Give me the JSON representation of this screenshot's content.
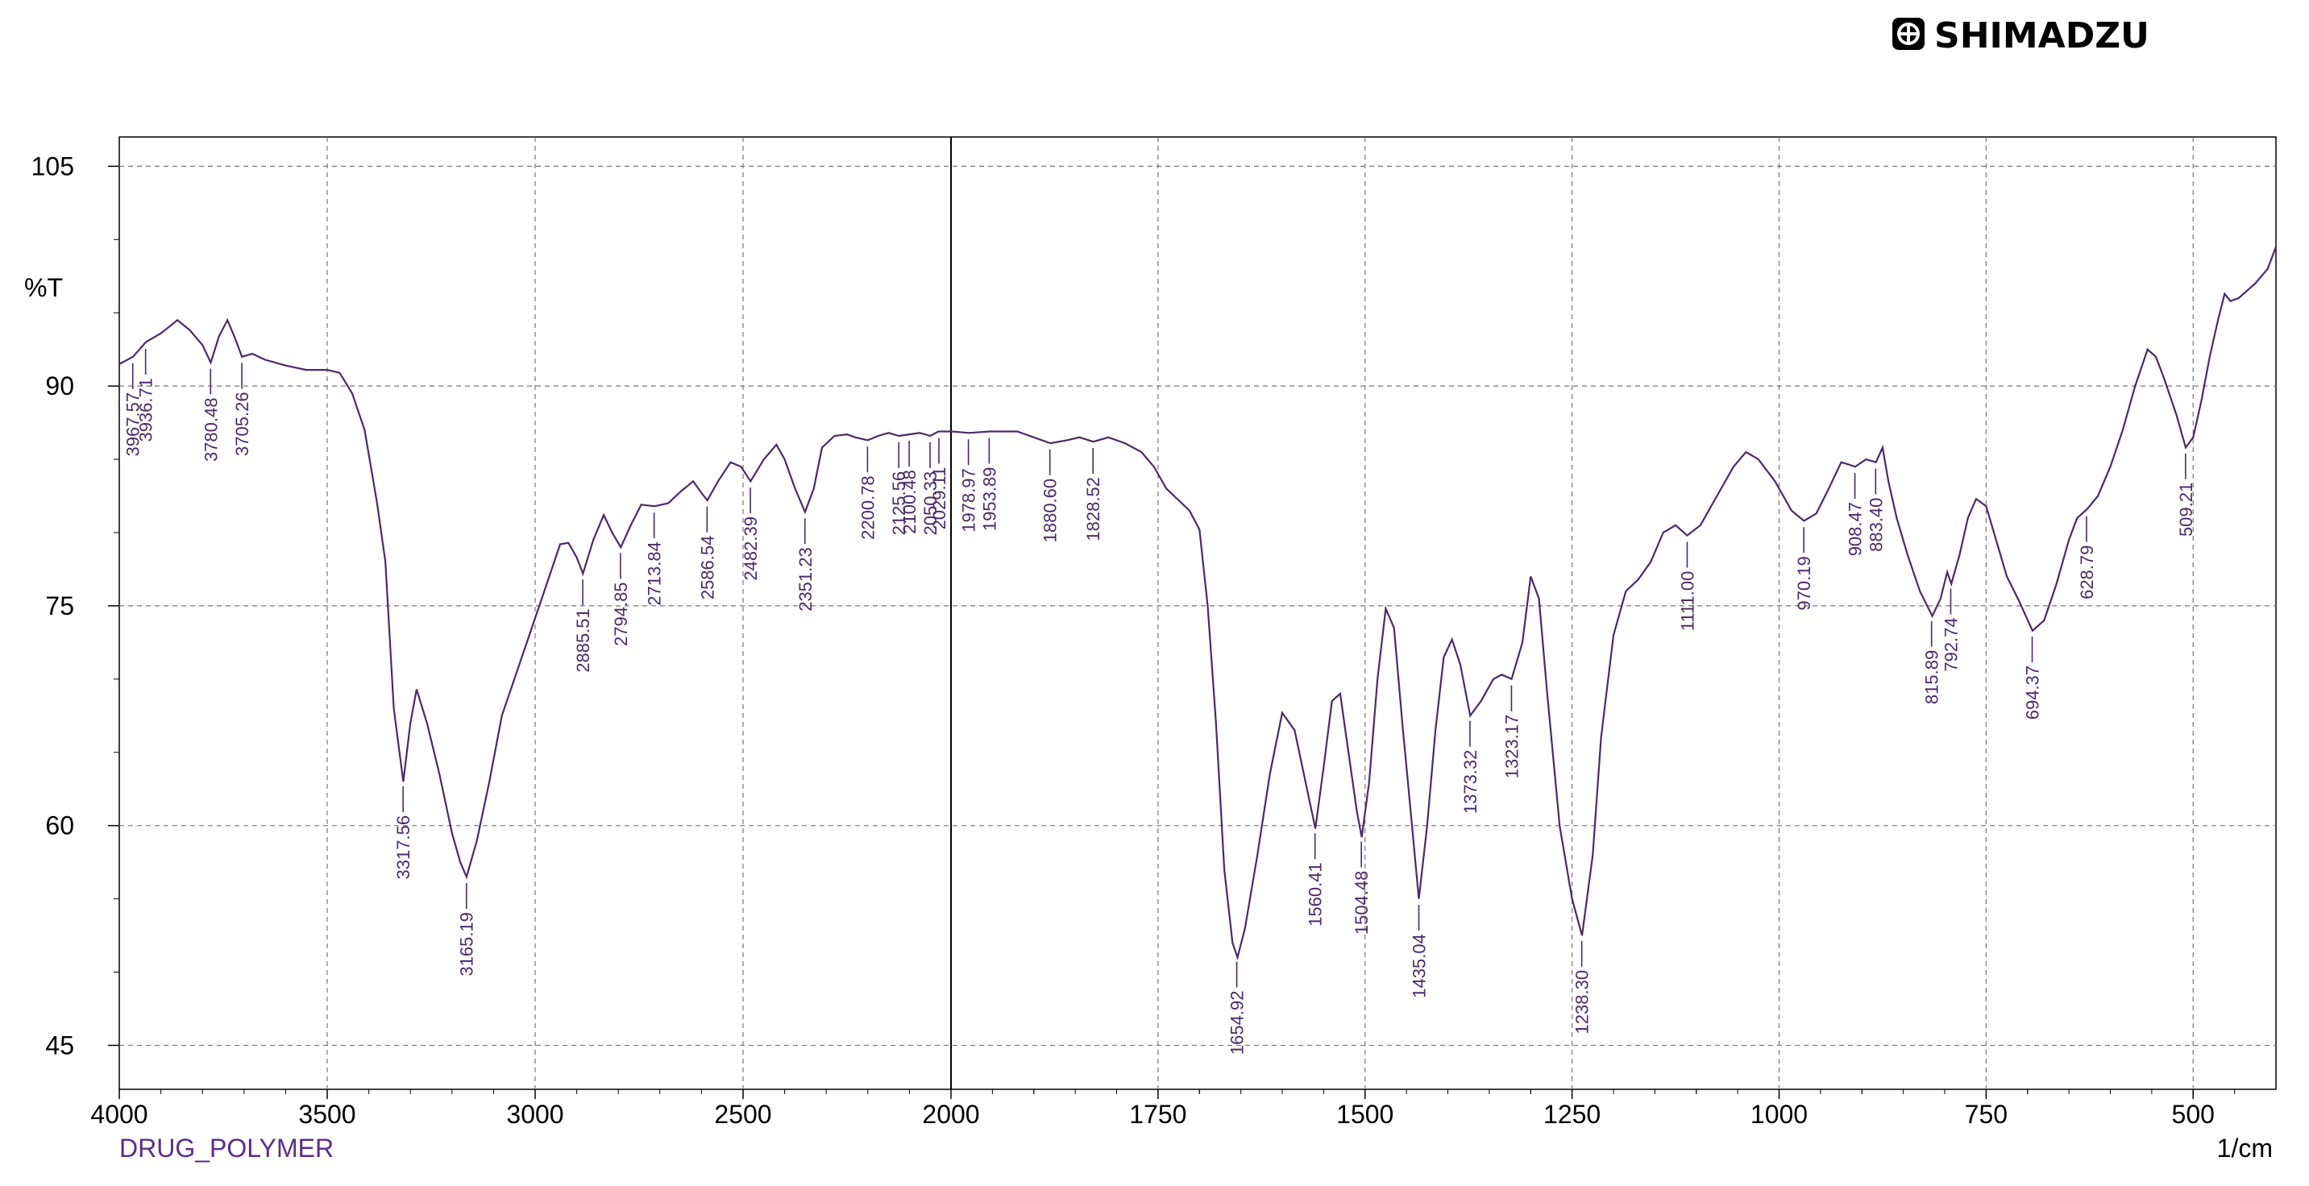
{
  "brand": {
    "name": "SHIMADZU",
    "icon": "shimadzu-logo-icon"
  },
  "chart_data": {
    "type": "line",
    "title": "",
    "sample_name": "DRUG_POLYMER",
    "xlabel": "1/cm",
    "ylabel": "%T",
    "xlim": [
      4000,
      400
    ],
    "ylim": [
      42,
      107
    ],
    "x_ticks": [
      4000,
      3500,
      3000,
      2500,
      2000,
      1750,
      1500,
      1250,
      1000,
      750,
      500
    ],
    "x_tick_labels": [
      "4000",
      "3500",
      "3000",
      "2500",
      "2000",
      "1750",
      "1500",
      "1250",
      "1000",
      "750",
      "500"
    ],
    "y_ticks": [
      45,
      60,
      75,
      90,
      105
    ],
    "y_tick_labels": [
      "45",
      "60",
      "75",
      "90",
      "105"
    ],
    "grid": true,
    "cursor_x": 2000,
    "series": [
      {
        "color": "#4b2a68",
        "points": [
          [
            4000,
            91.5
          ],
          [
            3967,
            92.0
          ],
          [
            3936,
            93.0
          ],
          [
            3900,
            93.6
          ],
          [
            3860,
            94.5
          ],
          [
            3830,
            93.8
          ],
          [
            3800,
            92.8
          ],
          [
            3780,
            91.6
          ],
          [
            3760,
            93.4
          ],
          [
            3740,
            94.5
          ],
          [
            3722,
            93.3
          ],
          [
            3705,
            92.0
          ],
          [
            3680,
            92.2
          ],
          [
            3650,
            91.8
          ],
          [
            3600,
            91.4
          ],
          [
            3550,
            91.1
          ],
          [
            3500,
            91.1
          ],
          [
            3470,
            90.9
          ],
          [
            3440,
            89.5
          ],
          [
            3410,
            87.0
          ],
          [
            3380,
            82.0
          ],
          [
            3360,
            78.0
          ],
          [
            3340,
            68.0
          ],
          [
            3317,
            63.0
          ],
          [
            3300,
            67.0
          ],
          [
            3285,
            69.3
          ],
          [
            3260,
            67.0
          ],
          [
            3230,
            63.5
          ],
          [
            3200,
            59.5
          ],
          [
            3180,
            57.5
          ],
          [
            3165,
            56.5
          ],
          [
            3140,
            59.0
          ],
          [
            3110,
            63.0
          ],
          [
            3080,
            67.5
          ],
          [
            3050,
            70.0
          ],
          [
            3020,
            72.5
          ],
          [
            2990,
            75.0
          ],
          [
            2960,
            77.5
          ],
          [
            2940,
            79.2
          ],
          [
            2920,
            79.3
          ],
          [
            2900,
            78.3
          ],
          [
            2885,
            77.2
          ],
          [
            2860,
            79.5
          ],
          [
            2835,
            81.2
          ],
          [
            2815,
            80.0
          ],
          [
            2794,
            79.0
          ],
          [
            2770,
            80.5
          ],
          [
            2745,
            81.9
          ],
          [
            2713,
            81.8
          ],
          [
            2680,
            82.0
          ],
          [
            2650,
            82.8
          ],
          [
            2620,
            83.5
          ],
          [
            2600,
            82.7
          ],
          [
            2586,
            82.2
          ],
          [
            2560,
            83.5
          ],
          [
            2530,
            84.8
          ],
          [
            2505,
            84.5
          ],
          [
            2482,
            83.5
          ],
          [
            2450,
            85.0
          ],
          [
            2420,
            86.0
          ],
          [
            2400,
            85.0
          ],
          [
            2375,
            83.0
          ],
          [
            2351,
            81.4
          ],
          [
            2330,
            83.0
          ],
          [
            2310,
            85.8
          ],
          [
            2280,
            86.6
          ],
          [
            2250,
            86.7
          ],
          [
            2230,
            86.5
          ],
          [
            2200,
            86.3
          ],
          [
            2175,
            86.6
          ],
          [
            2150,
            86.8
          ],
          [
            2125,
            86.6
          ],
          [
            2100,
            86.7
          ],
          [
            2075,
            86.8
          ],
          [
            2050,
            86.6
          ],
          [
            2030,
            86.9
          ],
          [
            2000,
            86.9
          ],
          [
            1978,
            86.8
          ],
          [
            1953,
            86.9
          ],
          [
            1920,
            86.9
          ],
          [
            1900,
            86.5
          ],
          [
            1880,
            86.1
          ],
          [
            1860,
            86.3
          ],
          [
            1845,
            86.5
          ],
          [
            1828,
            86.2
          ],
          [
            1810,
            86.5
          ],
          [
            1790,
            86.1
          ],
          [
            1770,
            85.5
          ],
          [
            1755,
            84.5
          ],
          [
            1740,
            83.0
          ],
          [
            1725,
            82.2
          ],
          [
            1712,
            81.5
          ],
          [
            1700,
            80.2
          ],
          [
            1690,
            75.0
          ],
          [
            1680,
            67.0
          ],
          [
            1670,
            57.0
          ],
          [
            1660,
            52.0
          ],
          [
            1654,
            51.0
          ],
          [
            1645,
            53.0
          ],
          [
            1630,
            58.0
          ],
          [
            1615,
            63.5
          ],
          [
            1600,
            67.7
          ],
          [
            1585,
            66.5
          ],
          [
            1572,
            63.0
          ],
          [
            1560,
            59.8
          ],
          [
            1550,
            64.0
          ],
          [
            1540,
            68.5
          ],
          [
            1530,
            69.0
          ],
          [
            1520,
            65.0
          ],
          [
            1510,
            61.0
          ],
          [
            1504,
            59.2
          ],
          [
            1495,
            63.0
          ],
          [
            1485,
            70.0
          ],
          [
            1475,
            74.8
          ],
          [
            1465,
            73.5
          ],
          [
            1455,
            67.0
          ],
          [
            1445,
            61.0
          ],
          [
            1435,
            55.0
          ],
          [
            1425,
            60.0
          ],
          [
            1415,
            66.5
          ],
          [
            1405,
            71.5
          ],
          [
            1395,
            72.7
          ],
          [
            1385,
            71.0
          ],
          [
            1373,
            67.5
          ],
          [
            1360,
            68.5
          ],
          [
            1345,
            70.0
          ],
          [
            1335,
            70.3
          ],
          [
            1323,
            70.0
          ],
          [
            1310,
            72.5
          ],
          [
            1300,
            77.0
          ],
          [
            1290,
            75.5
          ],
          [
            1280,
            69.0
          ],
          [
            1265,
            60.0
          ],
          [
            1250,
            55.0
          ],
          [
            1238,
            52.5
          ],
          [
            1225,
            58.0
          ],
          [
            1215,
            66.0
          ],
          [
            1200,
            73.0
          ],
          [
            1185,
            76.0
          ],
          [
            1170,
            76.8
          ],
          [
            1155,
            78.0
          ],
          [
            1140,
            80.0
          ],
          [
            1125,
            80.5
          ],
          [
            1111,
            79.8
          ],
          [
            1095,
            80.5
          ],
          [
            1075,
            82.5
          ],
          [
            1055,
            84.5
          ],
          [
            1040,
            85.5
          ],
          [
            1025,
            85.0
          ],
          [
            1005,
            83.5
          ],
          [
            985,
            81.5
          ],
          [
            970,
            80.8
          ],
          [
            955,
            81.3
          ],
          [
            940,
            83.0
          ],
          [
            925,
            84.8
          ],
          [
            908,
            84.5
          ],
          [
            895,
            85.0
          ],
          [
            883,
            84.8
          ],
          [
            875,
            85.8
          ],
          [
            868,
            83.5
          ],
          [
            858,
            81.0
          ],
          [
            845,
            78.5
          ],
          [
            830,
            76.0
          ],
          [
            815,
            74.3
          ],
          [
            805,
            75.5
          ],
          [
            797,
            77.3
          ],
          [
            792,
            76.5
          ],
          [
            782,
            78.5
          ],
          [
            772,
            81.0
          ],
          [
            762,
            82.3
          ],
          [
            750,
            81.8
          ],
          [
            738,
            79.5
          ],
          [
            725,
            77.0
          ],
          [
            710,
            75.3
          ],
          [
            694,
            73.3
          ],
          [
            680,
            74.0
          ],
          [
            665,
            76.5
          ],
          [
            650,
            79.5
          ],
          [
            640,
            81.0
          ],
          [
            628,
            81.6
          ],
          [
            615,
            82.5
          ],
          [
            600,
            84.5
          ],
          [
            585,
            87.0
          ],
          [
            570,
            90.0
          ],
          [
            555,
            92.5
          ],
          [
            545,
            92.0
          ],
          [
            535,
            90.5
          ],
          [
            520,
            88.0
          ],
          [
            509,
            85.8
          ],
          [
            500,
            86.5
          ],
          [
            490,
            89.0
          ],
          [
            480,
            92.0
          ],
          [
            470,
            94.5
          ],
          [
            462,
            96.3
          ],
          [
            455,
            95.8
          ],
          [
            445,
            96.0
          ],
          [
            435,
            96.5
          ],
          [
            425,
            97.0
          ],
          [
            410,
            98.0
          ],
          [
            400,
            99.5
          ]
        ]
      }
    ],
    "peaks": [
      {
        "x": 3967.57,
        "label": "3967.57"
      },
      {
        "x": 3936.71,
        "label": "3936.71"
      },
      {
        "x": 3780.48,
        "label": "3780.48"
      },
      {
        "x": 3705.26,
        "label": "3705.26"
      },
      {
        "x": 3317.56,
        "label": "3317.56"
      },
      {
        "x": 3165.19,
        "label": "3165.19"
      },
      {
        "x": 2885.51,
        "label": "2885.51"
      },
      {
        "x": 2794.85,
        "label": "2794.85"
      },
      {
        "x": 2713.84,
        "label": "2713.84"
      },
      {
        "x": 2586.54,
        "label": "2586.54"
      },
      {
        "x": 2482.39,
        "label": "2482.39"
      },
      {
        "x": 2351.23,
        "label": "2351.23"
      },
      {
        "x": 2200.78,
        "label": "2200.78"
      },
      {
        "x": 2125.56,
        "label": "2125.56"
      },
      {
        "x": 2100.48,
        "label": "2100.48"
      },
      {
        "x": 2050.33,
        "label": "2050.33"
      },
      {
        "x": 2029.11,
        "label": "2029.11"
      },
      {
        "x": 1978.97,
        "label": "1978.97"
      },
      {
        "x": 1953.89,
        "label": "1953.89"
      },
      {
        "x": 1880.6,
        "label": "1880.60"
      },
      {
        "x": 1828.52,
        "label": "1828.52"
      },
      {
        "x": 1654.92,
        "label": "1654.92"
      },
      {
        "x": 1560.41,
        "label": "1560.41"
      },
      {
        "x": 1504.48,
        "label": "1504.48"
      },
      {
        "x": 1435.04,
        "label": "1435.04"
      },
      {
        "x": 1373.32,
        "label": "1373.32"
      },
      {
        "x": 1323.17,
        "label": "1323.17"
      },
      {
        "x": 1238.3,
        "label": "1238.30"
      },
      {
        "x": 1111.0,
        "label": "1111.00"
      },
      {
        "x": 970.19,
        "label": "970.19"
      },
      {
        "x": 908.47,
        "label": "908.47"
      },
      {
        "x": 883.4,
        "label": "883.40"
      },
      {
        "x": 815.89,
        "label": "815.89"
      },
      {
        "x": 792.74,
        "label": "792.74"
      },
      {
        "x": 694.37,
        "label": "694.37"
      },
      {
        "x": 628.79,
        "label": "628.79"
      },
      {
        "x": 509.21,
        "label": "509.21"
      }
    ]
  }
}
